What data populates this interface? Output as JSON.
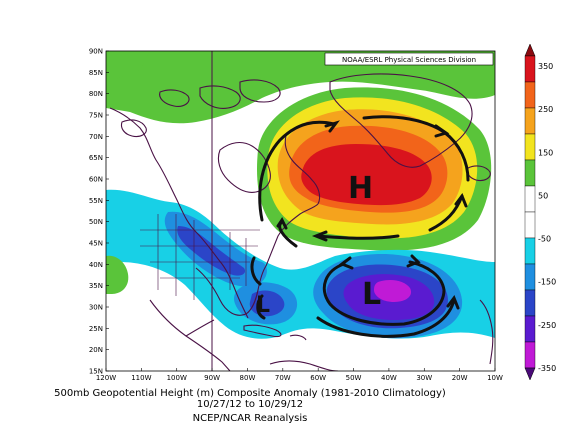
{
  "map": {
    "credit": "NOAA/ESRL Physical Sciences Division",
    "lat_labels": [
      "90N",
      "85N",
      "80N",
      "75N",
      "70N",
      "65N",
      "60N",
      "55N",
      "50N",
      "45N",
      "40N",
      "35N",
      "30N",
      "25N",
      "20N",
      "15N"
    ],
    "lon_labels": [
      "120W",
      "110W",
      "100W",
      "90W",
      "80W",
      "70W",
      "60W",
      "50W",
      "40W",
      "30W",
      "20W",
      "10W"
    ],
    "extent": {
      "lon": [
        -120,
        -10
      ],
      "lat": [
        15,
        90
      ]
    },
    "annotations": {
      "high": "H",
      "low": "L",
      "low_secondary": "L"
    },
    "colors": {
      "strong_positive": "#d9141d",
      "positive": "#f2641a",
      "mid_positive": "#f5a31d",
      "light_positive": "#f2e41f",
      "weak_positive": "#5ac43a",
      "neutral": "#ffffff",
      "weak_negative": "#18d0e6",
      "negative": "#1f8fe0",
      "mid_negative": "#2b45c8",
      "strong_negative": "#5a1bd0",
      "coastline": "#4a1246"
    }
  },
  "colorbar": {
    "labels": [
      "350",
      "250",
      "150",
      "50",
      "-50",
      "-150",
      "-250",
      "-350"
    ]
  },
  "captions": {
    "line1": "500mb Geopotential Height (m) Composite Anomaly (1981-2010 Climatology)",
    "line2": "10/27/12  to 10/29/12",
    "line3": "NCEP/NCAR Reanalysis"
  }
}
